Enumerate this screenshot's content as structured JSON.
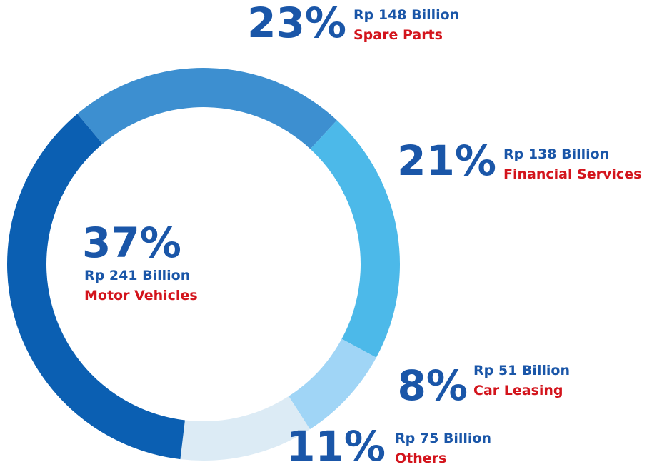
{
  "chart_data": {
    "type": "donut",
    "categories": [
      "Motor Vehicles",
      "Spare Parts",
      "Financial Services",
      "Car Leasing",
      "Others"
    ],
    "values": [
      37,
      23,
      21,
      8,
      11
    ],
    "value_labels": [
      "37%",
      "23%",
      "21%",
      "8%",
      "11%"
    ],
    "annotations": [
      "Rp 241 Billion",
      "Rp 148 Billion",
      "Rp 138 Billion",
      "Rp 51 Billion",
      "Rp 75 Billion"
    ],
    "colors": [
      "#0b5fb2",
      "#3d8fd0",
      "#4cb9e9",
      "#a0d5f6",
      "#dcebf5"
    ]
  }
}
